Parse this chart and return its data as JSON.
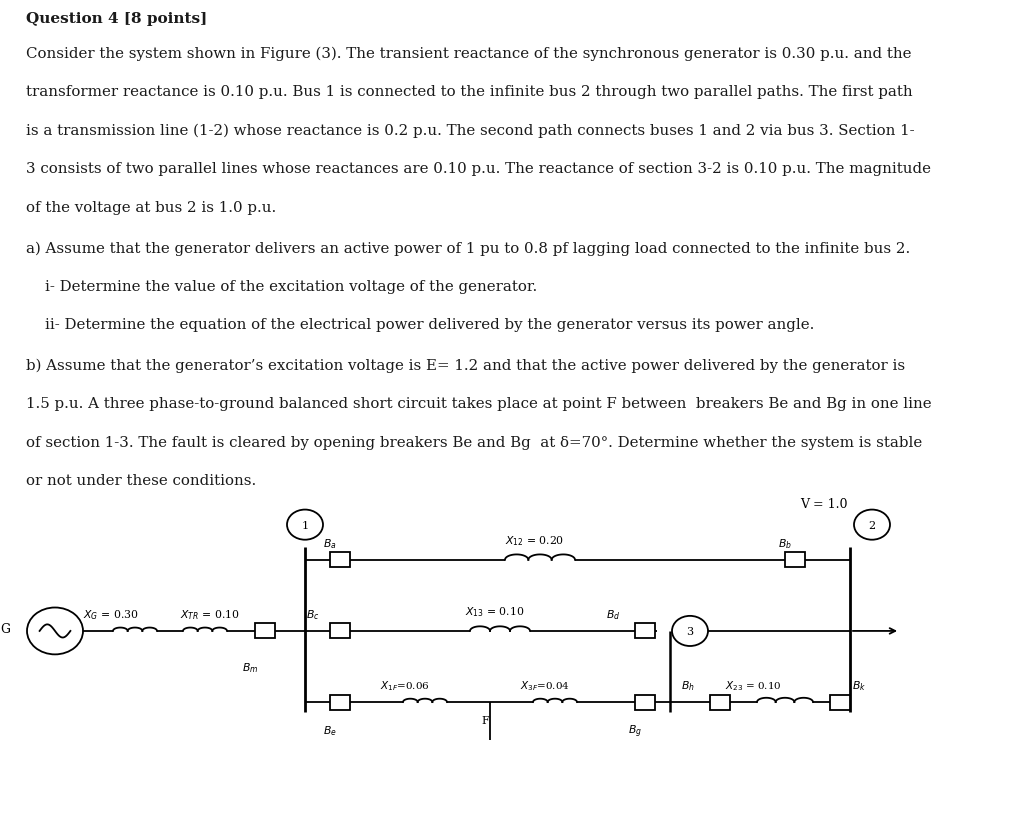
{
  "title_text": "Question 4 [8 points]",
  "body_lines": [
    "Consider the system shown in Figure (3). The transient reactance of the synchronous generator is 0.30 p.u. and the",
    "transformer reactance is 0.10 p.u. Bus 1 is connected to the infinite bus 2 through two parallel paths. The first path",
    "is a transmission line (1-2) whose reactance is 0.2 p.u. The second path connects buses 1 and 2 via bus 3. Section 1-",
    "3 consists of two parallel lines whose reactances are 0.10 p.u. The reactance of section 3-2 is 0.10 p.u. The magnitude",
    "of the voltage at bus 2 is 1.0 p.u."
  ],
  "para_a": "a) Assume that the generator delivers an active power of 1 pu to 0.8 pf lagging load connected to the infinite bus 2.",
  "item_i": "    i- Determine the value of the excitation voltage of the generator.",
  "item_ii": "    ii- Determine the equation of the electrical power delivered by the generator versus its power angle.",
  "para_b1": "b) Assume that the generator’s excitation voltage is E= 1.2 and that the active power delivered by the generator is",
  "para_b2": "1.5 p.u. A three phase-to-ground balanced short circuit takes place at point F between  breakers Be and Bg in one line",
  "para_b3": "of section 1-3. The fault is cleared by opening breakers Be and Bg  at δ=70°. Determine whether the system is stable",
  "para_b4": "or not under these conditions.",
  "bg_color": "#ffffff",
  "text_color": "#1a1a1a",
  "sep_color": "#8a8a8a"
}
